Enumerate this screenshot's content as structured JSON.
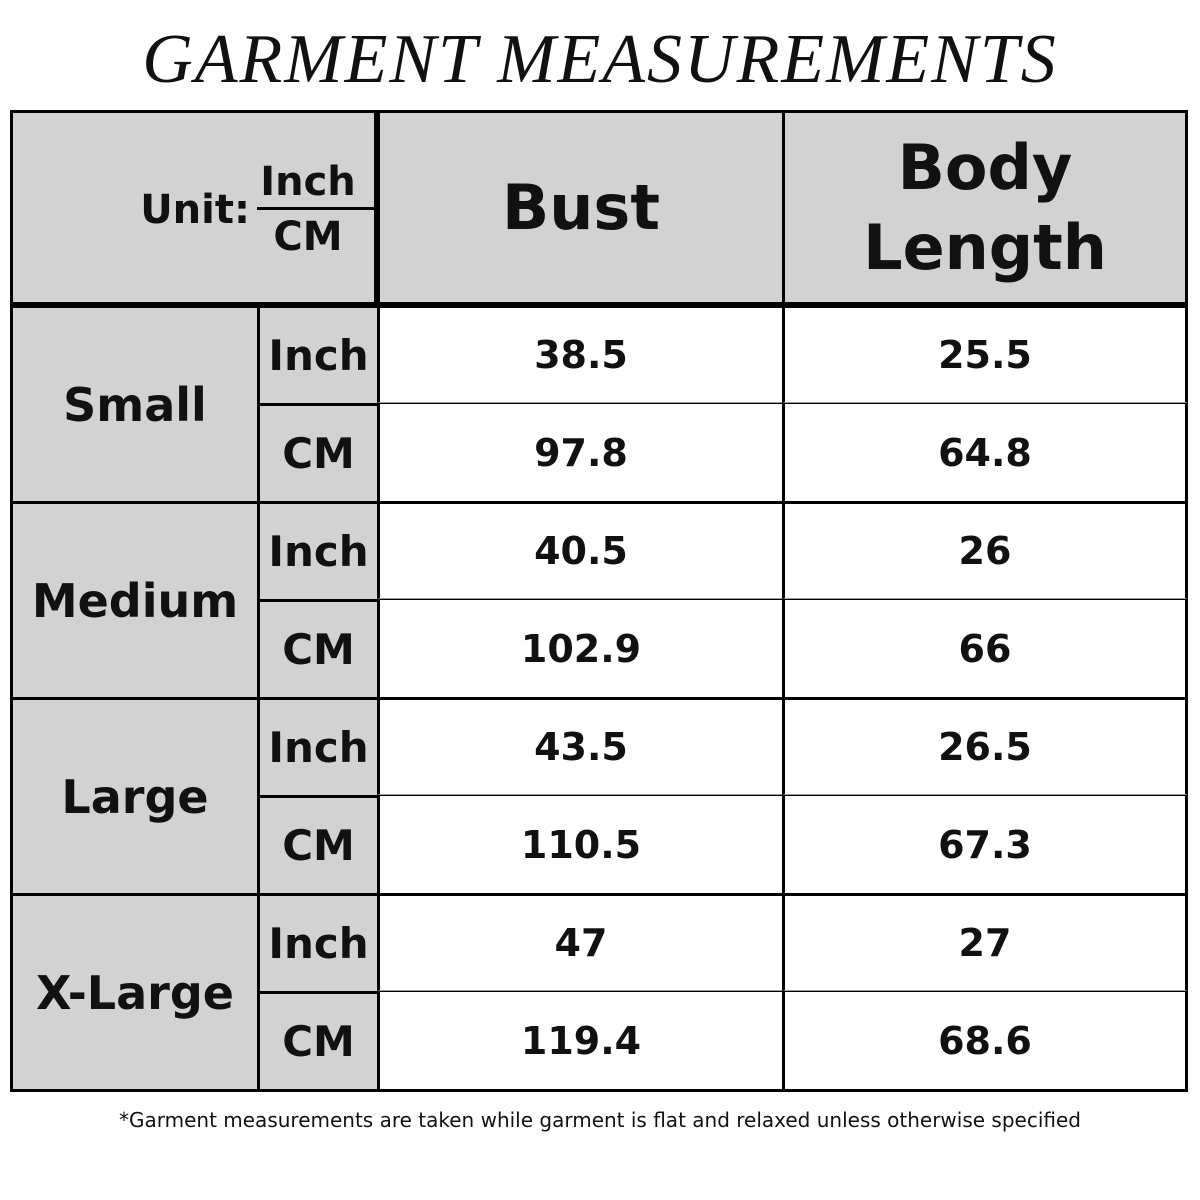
{
  "title": "GARMENT MEASUREMENTS",
  "table": {
    "unit_label": "Unit:",
    "unit_top": "Inch",
    "unit_bottom": "CM",
    "columns": [
      "Bust",
      "Body Length"
    ],
    "rows": [
      {
        "size": "Small",
        "unit": "Inch",
        "values": [
          "38.5",
          "25.5"
        ]
      },
      {
        "size": "Small",
        "unit": "CM",
        "values": [
          "97.8",
          "64.8"
        ]
      },
      {
        "size": "Medium",
        "unit": "Inch",
        "values": [
          "40.5",
          "26"
        ]
      },
      {
        "size": "Medium",
        "unit": "CM",
        "values": [
          "102.9",
          "66"
        ]
      },
      {
        "size": "Large",
        "unit": "Inch",
        "values": [
          "43.5",
          "26.5"
        ]
      },
      {
        "size": "Large",
        "unit": "CM",
        "values": [
          "110.5",
          "67.3"
        ]
      },
      {
        "size": "X-Large",
        "unit": "Inch",
        "values": [
          "47",
          "27"
        ]
      },
      {
        "size": "X-Large",
        "unit": "CM",
        "values": [
          "119.4",
          "68.6"
        ]
      }
    ]
  },
  "footnote": "*Garment measurements are taken while garment is flat and relaxed unless otherwise specified"
}
